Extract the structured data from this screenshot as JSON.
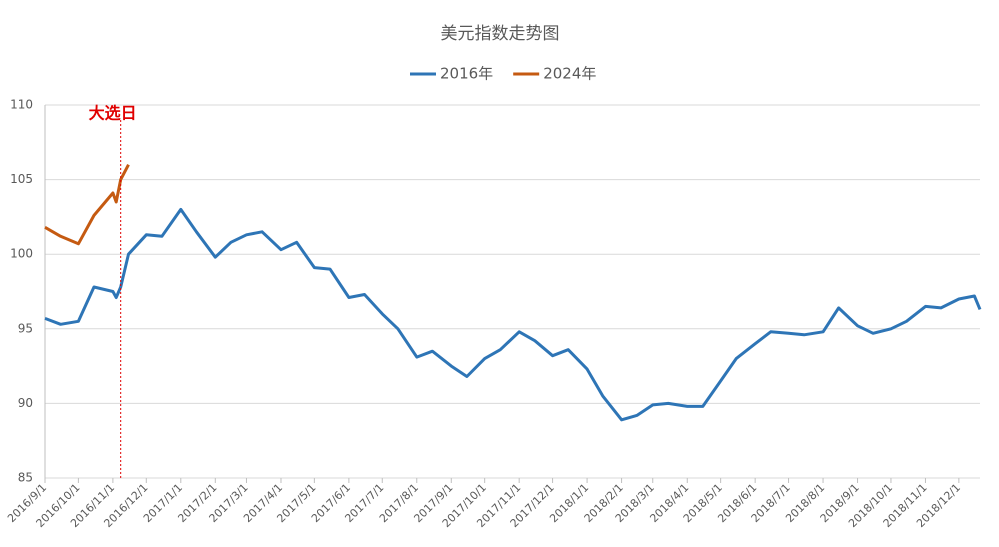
{
  "chart_data": {
    "type": "line",
    "title": "美元指数走势图",
    "x": [
      "2016/9/1",
      "2016/9/15",
      "2016/10/1",
      "2016/10/15",
      "2016/11/1",
      "2016/11/4",
      "2016/11/8",
      "2016/11/15",
      "2016/12/1",
      "2016/12/15",
      "2017/1/1",
      "2017/1/15",
      "2017/2/1",
      "2017/2/15",
      "2017/3/1",
      "2017/3/15",
      "2017/4/1",
      "2017/4/15",
      "2017/5/1",
      "2017/5/15",
      "2017/6/1",
      "2017/6/15",
      "2017/7/1",
      "2017/7/15",
      "2017/8/1",
      "2017/8/15",
      "2017/9/1",
      "2017/9/15",
      "2017/10/1",
      "2017/10/15",
      "2017/11/1",
      "2017/11/15",
      "2017/12/1",
      "2017/12/15",
      "2018/1/1",
      "2018/1/15",
      "2018/2/1",
      "2018/2/15",
      "2018/3/1",
      "2018/3/15",
      "2018/4/1",
      "2018/4/15",
      "2018/5/1",
      "2018/5/15",
      "2018/6/1",
      "2018/6/15",
      "2018/7/1",
      "2018/7/15",
      "2018/8/1",
      "2018/8/15",
      "2018/9/1",
      "2018/9/15",
      "2018/10/1",
      "2018/10/15",
      "2018/11/1",
      "2018/11/15",
      "2018/12/1",
      "2018/12/15",
      "2018/12/20"
    ],
    "series": [
      {
        "name": "2016年",
        "color": "#2e75b6",
        "values": [
          95.7,
          95.3,
          95.5,
          97.8,
          97.5,
          97.1,
          97.8,
          100.0,
          101.3,
          101.2,
          103.0,
          101.5,
          99.8,
          100.8,
          101.3,
          101.5,
          100.3,
          100.8,
          99.1,
          99.0,
          97.1,
          97.3,
          96.0,
          95.0,
          93.1,
          93.5,
          92.5,
          91.8,
          93.0,
          93.6,
          94.8,
          94.2,
          93.2,
          93.6,
          92.3,
          90.5,
          88.9,
          89.2,
          89.9,
          90.0,
          89.8,
          89.8,
          91.5,
          93.0,
          94.0,
          94.8,
          94.7,
          94.6,
          94.8,
          96.4,
          95.2,
          94.7,
          95.0,
          95.5,
          96.5,
          96.4,
          97.0,
          97.2,
          96.3
        ]
      },
      {
        "name": "2024年",
        "color": "#c55a11",
        "values": [
          101.8,
          101.2,
          100.7,
          102.6,
          104.1,
          103.5,
          105.0,
          106.0,
          null,
          null,
          null,
          null,
          null,
          null,
          null,
          null,
          null,
          null,
          null,
          null,
          null,
          null,
          null,
          null,
          null,
          null,
          null,
          null,
          null,
          null,
          null,
          null,
          null,
          null,
          null,
          null,
          null,
          null,
          null,
          null,
          null,
          null,
          null,
          null,
          null,
          null,
          null,
          null,
          null,
          null,
          null,
          null,
          null,
          null,
          null,
          null,
          null,
          null,
          null
        ]
      }
    ],
    "xlim": [
      "2016/9/1",
      "2018/12/20"
    ],
    "xticks": [
      "2016/9/1",
      "2016/10/1",
      "2016/11/1",
      "2016/12/1",
      "2017/1/1",
      "2017/2/1",
      "2017/3/1",
      "2017/4/1",
      "2017/5/1",
      "2017/6/1",
      "2017/7/1",
      "2017/8/1",
      "2017/9/1",
      "2017/10/1",
      "2017/11/1",
      "2017/12/1",
      "2018/1/1",
      "2018/2/1",
      "2018/3/1",
      "2018/4/1",
      "2018/5/1",
      "2018/6/1",
      "2018/7/1",
      "2018/8/1",
      "2018/9/1",
      "2018/10/1",
      "2018/11/1",
      "2018/12/1"
    ],
    "ylim": [
      85,
      110
    ],
    "yticks": [
      85,
      90,
      95,
      100,
      105,
      110
    ],
    "grid": true,
    "legend": "top",
    "annotation": {
      "text": "大选日",
      "x": "2016/11/8",
      "color": "#e00000"
    }
  }
}
